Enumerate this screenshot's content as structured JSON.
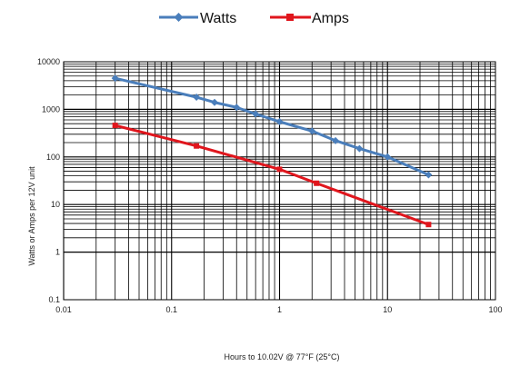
{
  "chart_data": {
    "type": "line",
    "xlabel": "Hours to 10.02V @ 77°F (25°C)",
    "ylabel": "Watts or Amps per 12V unit",
    "x_scale": "log",
    "y_scale": "log",
    "xlim": [
      0.01,
      100
    ],
    "ylim": [
      0.1,
      10000
    ],
    "x_ticks": [
      "0.01",
      "0.1",
      "1",
      "10",
      "100"
    ],
    "y_ticks": [
      "10000",
      "1000",
      "100",
      "10",
      "1",
      "0.1"
    ],
    "grid": true,
    "legend_position": "top-center",
    "series": [
      {
        "name": "Watts",
        "color": "#4a7ebb",
        "marker": "diamond",
        "x": [
          0.03,
          0.17,
          0.25,
          0.4,
          0.6,
          1.0,
          2.0,
          3.3,
          5.5,
          10,
          24
        ],
        "y": [
          4500,
          1800,
          1400,
          1100,
          800,
          550,
          350,
          220,
          150,
          100,
          42
        ]
      },
      {
        "name": "Amps",
        "color": "#e0161d",
        "marker": "square",
        "x": [
          0.03,
          0.17,
          1.0,
          2.2,
          24
        ],
        "y": [
          460,
          170,
          55,
          28,
          3.8
        ]
      }
    ]
  }
}
